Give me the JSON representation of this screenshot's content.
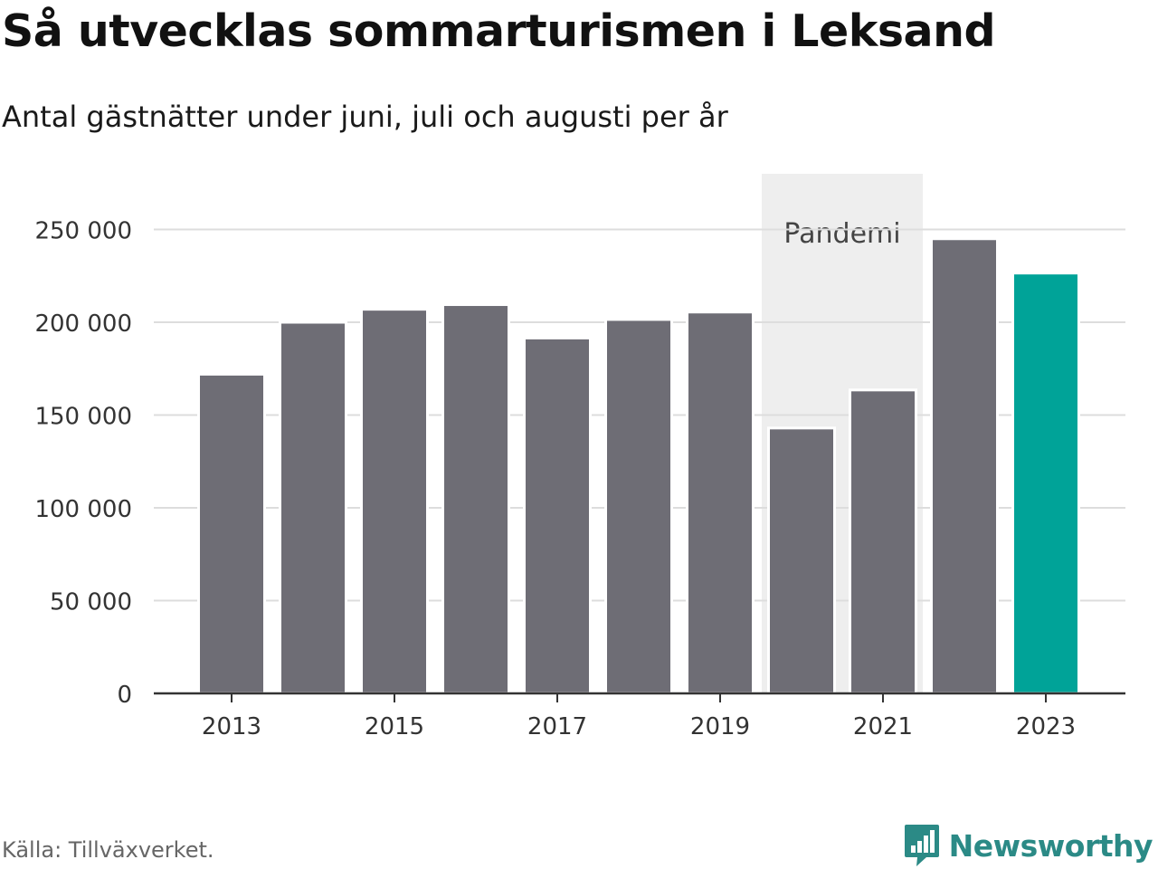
{
  "header": {
    "title": "Så utvecklas sommarturismen i Leksand",
    "subtitle": "Antal gästnätter under juni, juli och augusti per år"
  },
  "footer": {
    "source": "Källa: Tillväxverket.",
    "brand": "Newsworthy"
  },
  "colors": {
    "bar": "#6e6d75",
    "highlight": "#00a398",
    "band": "#eeeeee",
    "grid": "#dddddd",
    "axis": "#333333",
    "brand": "#2b8a86"
  },
  "icons": {
    "brand_icon": "bar-chart-speech-bubble-icon"
  },
  "chart_data": {
    "type": "bar",
    "title": "Så utvecklas sommarturismen i Leksand",
    "subtitle": "Antal gästnätter under juni, juli och augusti per år",
    "categories": [
      "2013",
      "2014",
      "2015",
      "2016",
      "2017",
      "2018",
      "2019",
      "2020",
      "2021",
      "2022",
      "2023"
    ],
    "values": [
      172000,
      200000,
      207000,
      209500,
      191500,
      201500,
      205500,
      143000,
      163500,
      245000,
      226500
    ],
    "highlight": [
      "2023"
    ],
    "x_tick_labels": [
      "2013",
      "2015",
      "2017",
      "2019",
      "2021",
      "2023"
    ],
    "y_ticks": [
      0,
      50000,
      100000,
      150000,
      200000,
      250000
    ],
    "y_tick_labels": [
      "0",
      "50 000",
      "100 000",
      "150 000",
      "200 000",
      "250 000"
    ],
    "ylim": [
      0,
      280000
    ],
    "annotations": [
      {
        "label": "Pandemi",
        "from": "2020",
        "to": "2021"
      }
    ],
    "grid": true,
    "legend": "none"
  }
}
